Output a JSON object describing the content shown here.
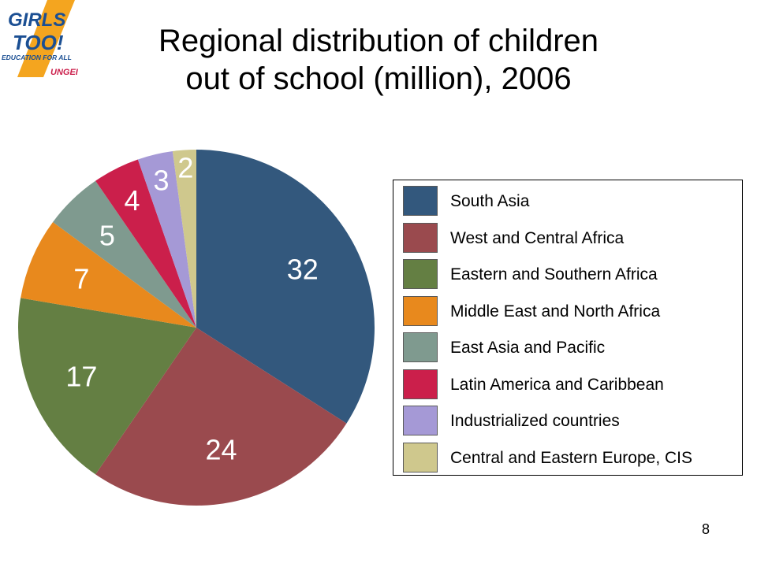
{
  "logo": {
    "line1": "GIRLS",
    "line2": "TOO!",
    "line3": "EDUCATION FOR ALL",
    "line4": "UNGEI"
  },
  "title": {
    "line1": "Regional distribution of children",
    "line2": "out of school (million), 2006"
  },
  "chart_data": {
    "type": "pie",
    "title": "Regional distribution of children out of school (million), 2006",
    "start": "12 o'clock, clockwise",
    "legend_position": "right",
    "slices": [
      {
        "label": "South Asia",
        "value": 32,
        "color": "#33587d"
      },
      {
        "label": "West and Central Africa",
        "value": 24,
        "color": "#9a4a4e"
      },
      {
        "label": "Eastern and Southern Africa",
        "value": 17,
        "color": "#647f43"
      },
      {
        "label": "Middle East and North Africa",
        "value": 7,
        "color": "#e8891d"
      },
      {
        "label": "East Asia and Pacific",
        "value": 5,
        "color": "#7f9a8f"
      },
      {
        "label": "Latin America and Caribbean",
        "value": 4,
        "color": "#cb1f4b"
      },
      {
        "label": "Industrialized countries",
        "value": 3,
        "color": "#a599d6"
      },
      {
        "label": "Central and Eastern Europe, CIS",
        "value": 2,
        "color": "#cfc88d"
      }
    ]
  },
  "page_number": "8"
}
